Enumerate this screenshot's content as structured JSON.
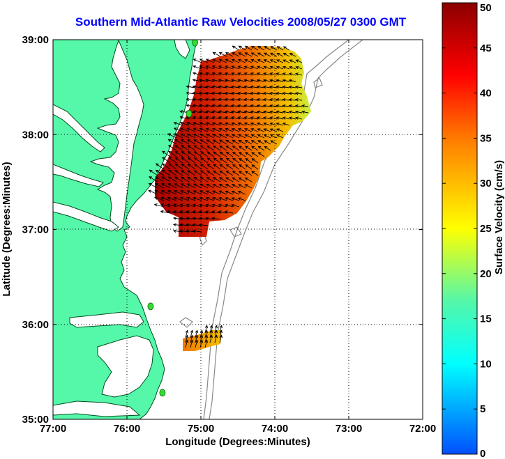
{
  "title": "Southern Mid-Atlantic Raw Velocities 2008/05/27 0300 GMT",
  "axes": {
    "xlabel": "Longitude (Degrees:Minutes)",
    "ylabel": "Latitude (Degrees:Minutes)",
    "xlim": [
      -77,
      -72
    ],
    "ylim": [
      35,
      39
    ],
    "x_ticks": [
      {
        "value": -77,
        "label": "77:00"
      },
      {
        "value": -76,
        "label": "76:00"
      },
      {
        "value": -75,
        "label": "75:00"
      },
      {
        "value": -74,
        "label": "74:00"
      },
      {
        "value": -73,
        "label": "73:00"
      },
      {
        "value": -72,
        "label": "72:00"
      }
    ],
    "y_ticks": [
      {
        "value": 35,
        "label": "35:00"
      },
      {
        "value": 36,
        "label": "36:00"
      },
      {
        "value": 37,
        "label": "37:00"
      },
      {
        "value": 38,
        "label": "38:00"
      },
      {
        "value": 39,
        "label": "39:00"
      }
    ],
    "grid": "dotted"
  },
  "colorbar": {
    "label": "Surface Velocity (cm/s)",
    "min": 0,
    "max": 50,
    "ticks": [
      {
        "value": 0,
        "label": "0"
      },
      {
        "value": 5,
        "label": "5"
      },
      {
        "value": 10,
        "label": "10"
      },
      {
        "value": 15,
        "label": "15"
      },
      {
        "value": 20,
        "label": "20"
      },
      {
        "value": 25,
        "label": "25"
      },
      {
        "value": 30,
        "label": "30"
      },
      {
        "value": 35,
        "label": "35"
      },
      {
        "value": 40,
        "label": "40"
      },
      {
        "value": 45,
        "label": "45"
      },
      {
        "value": 50,
        "label": "50"
      }
    ]
  },
  "colors": {
    "land": "#55f7a8",
    "coast_line": "#004d20",
    "bathymetry": "#888888",
    "station": "#33dd33",
    "title": "#0000ff"
  },
  "stations": [
    {
      "lon": -75.08,
      "lat": 38.97
    },
    {
      "lon": -75.16,
      "lat": 38.22
    },
    {
      "lon": -75.68,
      "lat": 36.19
    },
    {
      "lon": -75.52,
      "lat": 35.28
    }
  ]
}
